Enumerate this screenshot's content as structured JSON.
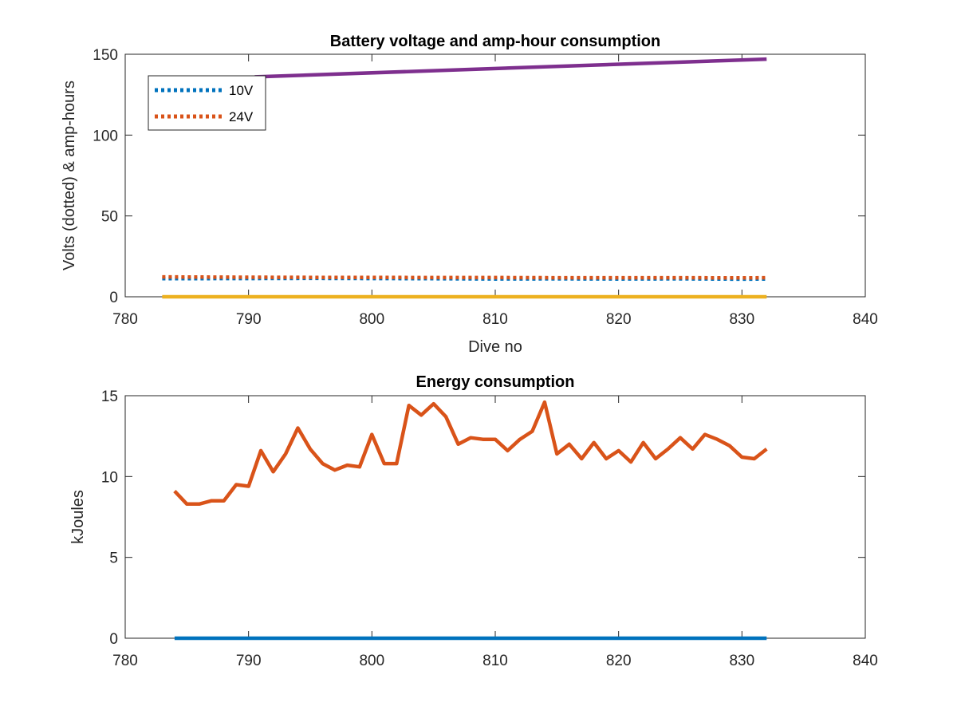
{
  "chart_data": [
    {
      "type": "line",
      "title": "Battery voltage and amp-hour consumption",
      "xlabel": "Dive no",
      "ylabel": "Volts (dotted) & amp-hours",
      "xlim": [
        780,
        840
      ],
      "ylim": [
        0,
        150
      ],
      "xticks": [
        780,
        790,
        800,
        810,
        820,
        830,
        840
      ],
      "yticks": [
        0,
        50,
        100,
        150
      ],
      "grid": false,
      "legend_position": "top-left",
      "series": [
        {
          "name": "10V",
          "style": "dotted",
          "color": "#0072BD",
          "x": [
            783,
            790,
            795,
            800,
            805,
            810,
            815,
            820,
            825,
            830,
            832
          ],
          "y": [
            11.2,
            11.3,
            11.4,
            11.3,
            11.2,
            11.0,
            11.1,
            11.0,
            11.1,
            10.9,
            11.0
          ]
        },
        {
          "name": "24V",
          "style": "dotted",
          "color": "#D95319",
          "x": [
            783,
            790,
            795,
            800,
            805,
            810,
            815,
            820,
            825,
            830,
            832
          ],
          "y": [
            12.3,
            12.1,
            12.0,
            12.0,
            11.9,
            11.9,
            11.8,
            11.8,
            11.8,
            11.7,
            11.8
          ]
        },
        {
          "style": "solid",
          "color": "#7E2F8E",
          "x": [
            790.5,
            832
          ],
          "y": [
            136,
            147
          ]
        },
        {
          "style": "solid",
          "color": "#EDB120",
          "x": [
            783,
            832
          ],
          "y": [
            0,
            0
          ]
        }
      ]
    },
    {
      "type": "line",
      "title": "Energy consumption",
      "xlabel": "",
      "ylabel": "kJoules",
      "xlim": [
        780,
        840
      ],
      "ylim": [
        0,
        15
      ],
      "xticks": [
        780,
        790,
        800,
        810,
        820,
        830,
        840
      ],
      "yticks": [
        0,
        5,
        10,
        15
      ],
      "grid": false,
      "series": [
        {
          "style": "solid",
          "color": "#D95319",
          "x": [
            784,
            785,
            786,
            787,
            788,
            789,
            790,
            791,
            792,
            793,
            794,
            795,
            796,
            797,
            798,
            799,
            800,
            801,
            802,
            803,
            804,
            805,
            806,
            807,
            808,
            809,
            810,
            811,
            812,
            813,
            814,
            815,
            816,
            817,
            818,
            819,
            820,
            821,
            822,
            823,
            824,
            825,
            826,
            827,
            828,
            829,
            830,
            831,
            832
          ],
          "y": [
            9.1,
            8.3,
            8.3,
            8.5,
            8.5,
            9.5,
            9.4,
            11.6,
            10.3,
            11.4,
            13.0,
            11.7,
            10.8,
            10.4,
            10.7,
            10.6,
            12.6,
            10.8,
            10.8,
            14.4,
            13.8,
            14.5,
            13.7,
            12.0,
            12.4,
            12.3,
            12.3,
            11.6,
            12.3,
            12.8,
            14.6,
            11.4,
            12.0,
            11.1,
            12.1,
            11.1,
            11.6,
            10.9,
            12.1,
            11.1,
            11.7,
            12.4,
            11.7,
            12.6,
            12.3,
            11.9,
            11.2,
            11.1,
            11.7
          ]
        },
        {
          "style": "solid",
          "color": "#0072BD",
          "x": [
            784,
            832
          ],
          "y": [
            0,
            0
          ]
        }
      ]
    }
  ]
}
